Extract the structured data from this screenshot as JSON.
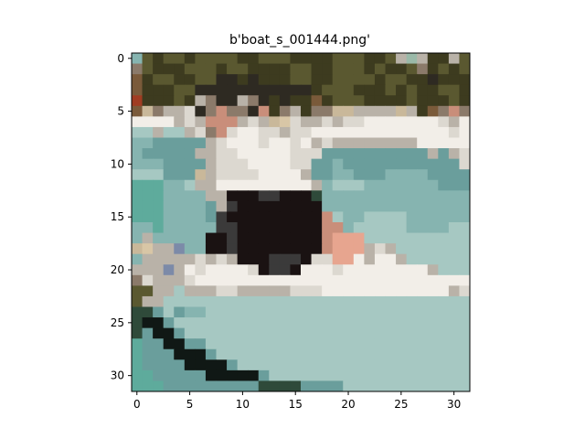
{
  "title": "b'boat_s_001444.png'",
  "axes": {
    "x_ticks": [
      "0",
      "5",
      "10",
      "15",
      "20",
      "25",
      "30"
    ],
    "y_ticks": [
      "0",
      "5",
      "10",
      "15",
      "20",
      "25",
      "30"
    ]
  },
  "image": {
    "grid_size": 32,
    "palette": {
      "A": "#3d3b1f",
      "B": "#5a5830",
      "C": "#7a5a3a",
      "D": "#a03c22",
      "E": "#2e2a22",
      "F": "#f2eee8",
      "G": "#dcd8d0",
      "H": "#b9b2a8",
      "I": "#8b7a6a",
      "J": "#c98e7a",
      "K": "#1a1212",
      "L": "#3b3a3a",
      "M": "#6a9e9c",
      "N": "#86b4b0",
      "O": "#a6c8c2",
      "P": "#5eab9c",
      "Q": "#2f4a3a",
      "R": "#101815",
      "S": "#c9b89a",
      "T": "#e7a58f",
      "U": "#7c8aa8",
      "V": "#d8c6a6",
      "W": "#9ab9a8"
    },
    "rows": [
      "NBABBABBBBAABBBAAAABBBAABHWHAAHB",
      "IBAAABBBABBAAAABBAABBBABAABIABAB",
      "CABBAABBEEAEAAABBAABBBBABBAAEAAA",
      "CAAABBEEEEEEEEEEEABBBAAABABAABBA",
      "DAAABAHIEEHIEAEAACABBBAAAABAAABA",
      "CSIHHGEIJIIEJAIHAIISSHHHHSHACIJI",
      "FFFFHGHJJJHGHSVGHHGHGGFFFFFFFGHF",
      "OOHOOHGIJGFFGGHGGFFFFFFFFFFFFFGF",
      "NNMMMMMHGFFFGFFGFHGHHHHHHHHFFFFF",
      "NMMMMMHHGGFFFFFGGGMMMMMMMMMMHMHG",
      "NNNMMMMHGGGFFFFGGMMNMMMMMMMMMMMG",
      "OOOMMMSHGGGGFFFFHMMNNMMMNNNNMMMM",
      "PPPNNOHHFFFFFFFFFHNOOONNNNNNNMMM",
      "PPPNNNNHHKKKLLKKKQNNNNNNNNNNNNNN",
      "PPPNNNNMHLKKKKKKKKNNNNNNNNNNNNNN",
      "PPPNNNNMLKKKKKKKKKJONNOOOONNNNNN",
      "NNPNNNNNLLKKKKKKKKJJNOOOOONNNNOO",
      "NHNNNNNKKLKKKKKKKKJTTTOOOOOOOOOO",
      "SVHHUNNKKLKKKKKKKKJTTTHGHOOOOOOO",
      "NHHHHHGHGHKKKLLLKGGTTFHFFHOOOOOO",
      "HHHUHFGFFFFGKLLKFFFGFFFFFFFFHOOO",
      "IGHHHGFFFFFFFFFFFFFFFFFFFFFFFFFF",
      "BBHHOHHHGGHHHHHGGGFFFFFFFFFFFFHG",
      "BHHOOOOOOOOOOOOOOOOOOOOOOOOOOOOO",
      "QQMOMNNOOOOOOOOOOOOOOOOOOOOOOOOO",
      "QRRMOOOOOOOOOOOOOOOOOOOOOOOOOOOO",
      "QMRRMOOOOOOOOOOOOOOOOOOOOOOOOOOO",
      "PMMRRMMOOOOOOOOOOOOOOOOOOOOOOOOO",
      "PMMMRRRMOOOOOOOOOOOOOOOOOOOOOOOO",
      "PMMMMRRRRMOOOOOOOOOOOOOOOOOOOOOO",
      "PPMMMMMRRRRRMOOOOOOOOOOOOOOOOOOO",
      "PPPMMMMMMMMMQQQQMMMMOOOOOOOOOOOO"
    ]
  }
}
